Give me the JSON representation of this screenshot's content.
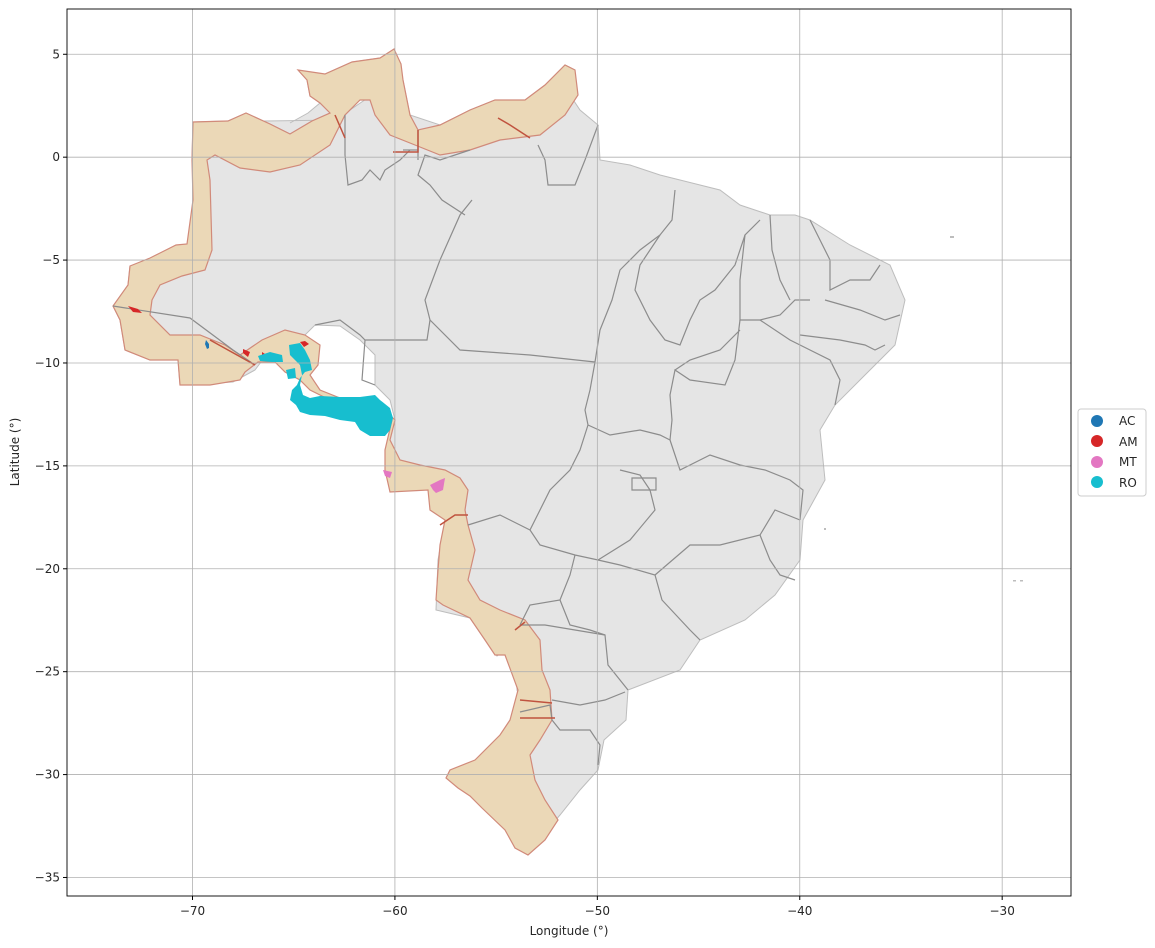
{
  "map": {
    "x_axis": {
      "label": "Longitude (°)",
      "ticks": [
        -70,
        -60,
        -50,
        -40,
        -30
      ],
      "tick_labels": [
        "−70",
        "−60",
        "−50",
        "−40",
        "−30"
      ],
      "range": [
        -76.2,
        -26.6
      ]
    },
    "y_axis": {
      "label": "Latitude (°)",
      "ticks": [
        5,
        0,
        -5,
        -10,
        -15,
        -20,
        -25,
        -30,
        -35
      ],
      "tick_labels": [
        "5",
        "0",
        "−5",
        "−10",
        "−15",
        "−20",
        "−25",
        "−30",
        "−35"
      ],
      "range": [
        -35.9,
        7.2
      ]
    },
    "grid": true,
    "layers": {
      "country_fill": "#e5e5e5",
      "state_border": "#8c8c8c",
      "buffer_zone_fill": "#ebd8b7",
      "buffer_zone_edge": "#d18a7a"
    },
    "legend": {
      "placement": "right-center",
      "entries": [
        {
          "label": "AC",
          "color": "#1f77b4"
        },
        {
          "label": "AM",
          "color": "#d62728"
        },
        {
          "label": "MT",
          "color": "#e377c2"
        },
        {
          "label": "RO",
          "color": "#17becf"
        }
      ]
    }
  }
}
